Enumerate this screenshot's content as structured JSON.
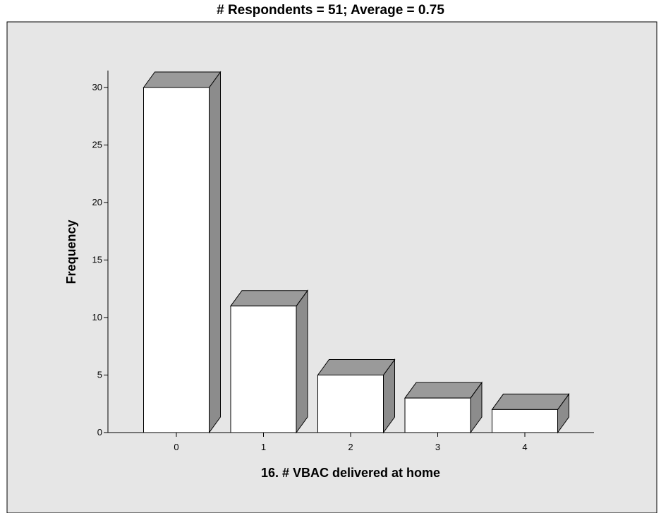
{
  "chart_data": {
    "type": "bar",
    "title": "# Respondents = 51; Average = 0.75",
    "xlabel": "16. # VBAC delivered at home",
    "ylabel": "Frequency",
    "categories": [
      "0",
      "1",
      "2",
      "3",
      "4"
    ],
    "values": [
      30,
      11,
      5,
      3,
      2
    ],
    "ylim": [
      0,
      30
    ],
    "yticks": [
      0,
      5,
      10,
      15,
      20,
      25,
      30
    ],
    "grid": false,
    "legend": "none",
    "style": "3d",
    "colors": {
      "background": "#e6e6e6",
      "bar_face": "#ffffff",
      "bar_side": "#8c8c8c",
      "bar_top": "#9a9a9a",
      "outline": "#000000"
    }
  }
}
